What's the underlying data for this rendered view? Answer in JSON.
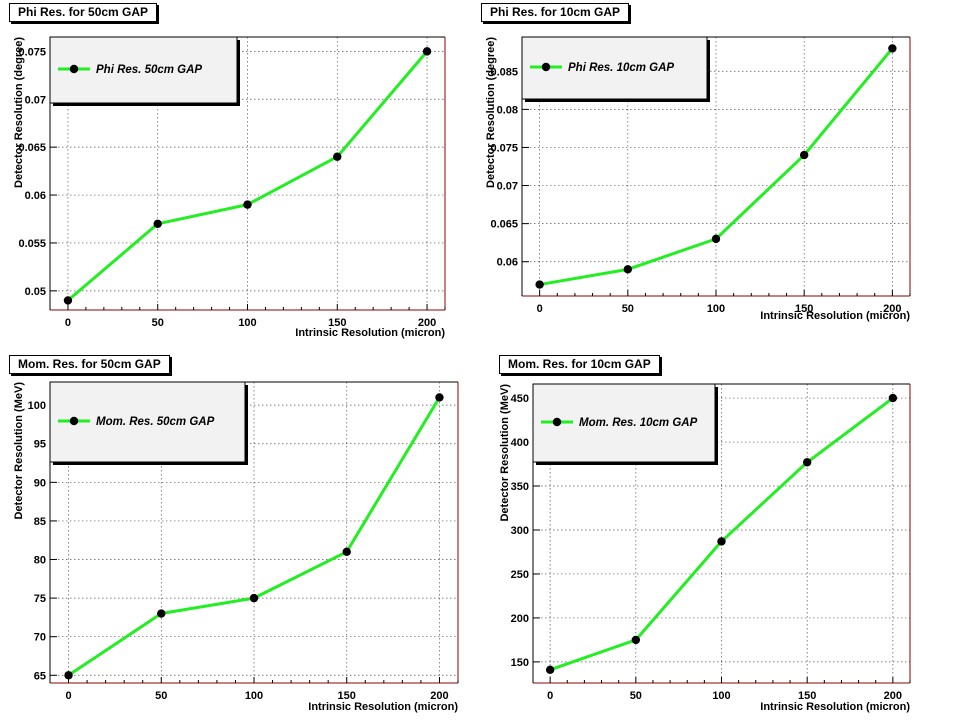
{
  "chart_data": [
    {
      "type": "line",
      "title": "Phi Res. for 50cm GAP",
      "xlabel": "Intrinsic Resolution (micron)",
      "ylabel": "Detector Resolution (degree)",
      "x": [
        0,
        50,
        100,
        150,
        200
      ],
      "series": [
        {
          "name": "Phi Res. 50cm GAP",
          "values": [
            0.049,
            0.057,
            0.059,
            0.064,
            0.075
          ]
        }
      ],
      "xlim": [
        -10,
        210
      ],
      "ylim": [
        0.048,
        0.0765
      ],
      "xticks": [
        "0",
        "50",
        "100",
        "150",
        "200"
      ],
      "yticks": [
        0.05,
        0.055,
        0.06,
        0.065,
        0.07,
        0.075
      ],
      "ytick_labels": [
        "0.05",
        "0.055",
        "0.06",
        "0.065",
        "0.07",
        "0.075"
      ],
      "grid": true,
      "legend": "top-left",
      "colors": {
        "line": "#22ee22",
        "marker": "#000000"
      }
    },
    {
      "type": "line",
      "title": "Phi Res. for 10cm GAP",
      "xlabel": "Intrinsic Resolution (micron)",
      "ylabel": "Detector Resolution (degree)",
      "x": [
        0,
        50,
        100,
        150,
        200
      ],
      "series": [
        {
          "name": "Phi Res. 10cm GAP",
          "values": [
            0.057,
            0.059,
            0.063,
            0.074,
            0.088
          ]
        }
      ],
      "xlim": [
        -10,
        210
      ],
      "ylim": [
        0.0555,
        0.0895
      ],
      "xticks": [
        "0",
        "50",
        "100",
        "150",
        "200"
      ],
      "yticks": [
        0.06,
        0.065,
        0.07,
        0.075,
        0.08,
        0.085
      ],
      "ytick_labels": [
        "0.06",
        "0.065",
        "0.07",
        "0.075",
        "0.08",
        "0.085"
      ],
      "grid": true,
      "legend": "top-left",
      "colors": {
        "line": "#22ee22",
        "marker": "#000000"
      }
    },
    {
      "type": "line",
      "title": "Mom. Res. for 50cm GAP",
      "xlabel": "Intrinsic Resolution (micron)",
      "ylabel": "Detector Resolution (MeV)",
      "x": [
        0,
        50,
        100,
        150,
        200
      ],
      "series": [
        {
          "name": "Mom. Res. 50cm GAP",
          "values": [
            65,
            73,
            75,
            81,
            101
          ]
        }
      ],
      "xlim": [
        -10,
        210
      ],
      "ylim": [
        64,
        103
      ],
      "xticks": [
        "0",
        "50",
        "100",
        "150",
        "200"
      ],
      "yticks": [
        65,
        70,
        75,
        80,
        85,
        90,
        95,
        100
      ],
      "ytick_labels": [
        "65",
        "70",
        "75",
        "80",
        "85",
        "90",
        "95",
        "100"
      ],
      "grid": true,
      "legend": "top-left",
      "colors": {
        "line": "#22ee22",
        "marker": "#000000"
      }
    },
    {
      "type": "line",
      "title": "Mom. Res. for 10cm GAP",
      "xlabel": "Intrinsic Resolution (micron)",
      "ylabel": "Detector Resolution (MeV)",
      "x": [
        0,
        50,
        100,
        150,
        200
      ],
      "series": [
        {
          "name": "Mom. Res. 10cm GAP",
          "values": [
            141,
            175,
            287,
            377,
            450
          ]
        }
      ],
      "xlim": [
        -10,
        210
      ],
      "ylim": [
        126,
        466
      ],
      "xticks": [
        "0",
        "50",
        "100",
        "150",
        "200"
      ],
      "yticks": [
        150,
        200,
        250,
        300,
        350,
        400,
        450
      ],
      "ytick_labels": [
        "150",
        "200",
        "250",
        "300",
        "350",
        "400",
        "450"
      ],
      "grid": true,
      "legend": "top-left",
      "colors": {
        "line": "#22ee22",
        "marker": "#000000"
      }
    }
  ]
}
